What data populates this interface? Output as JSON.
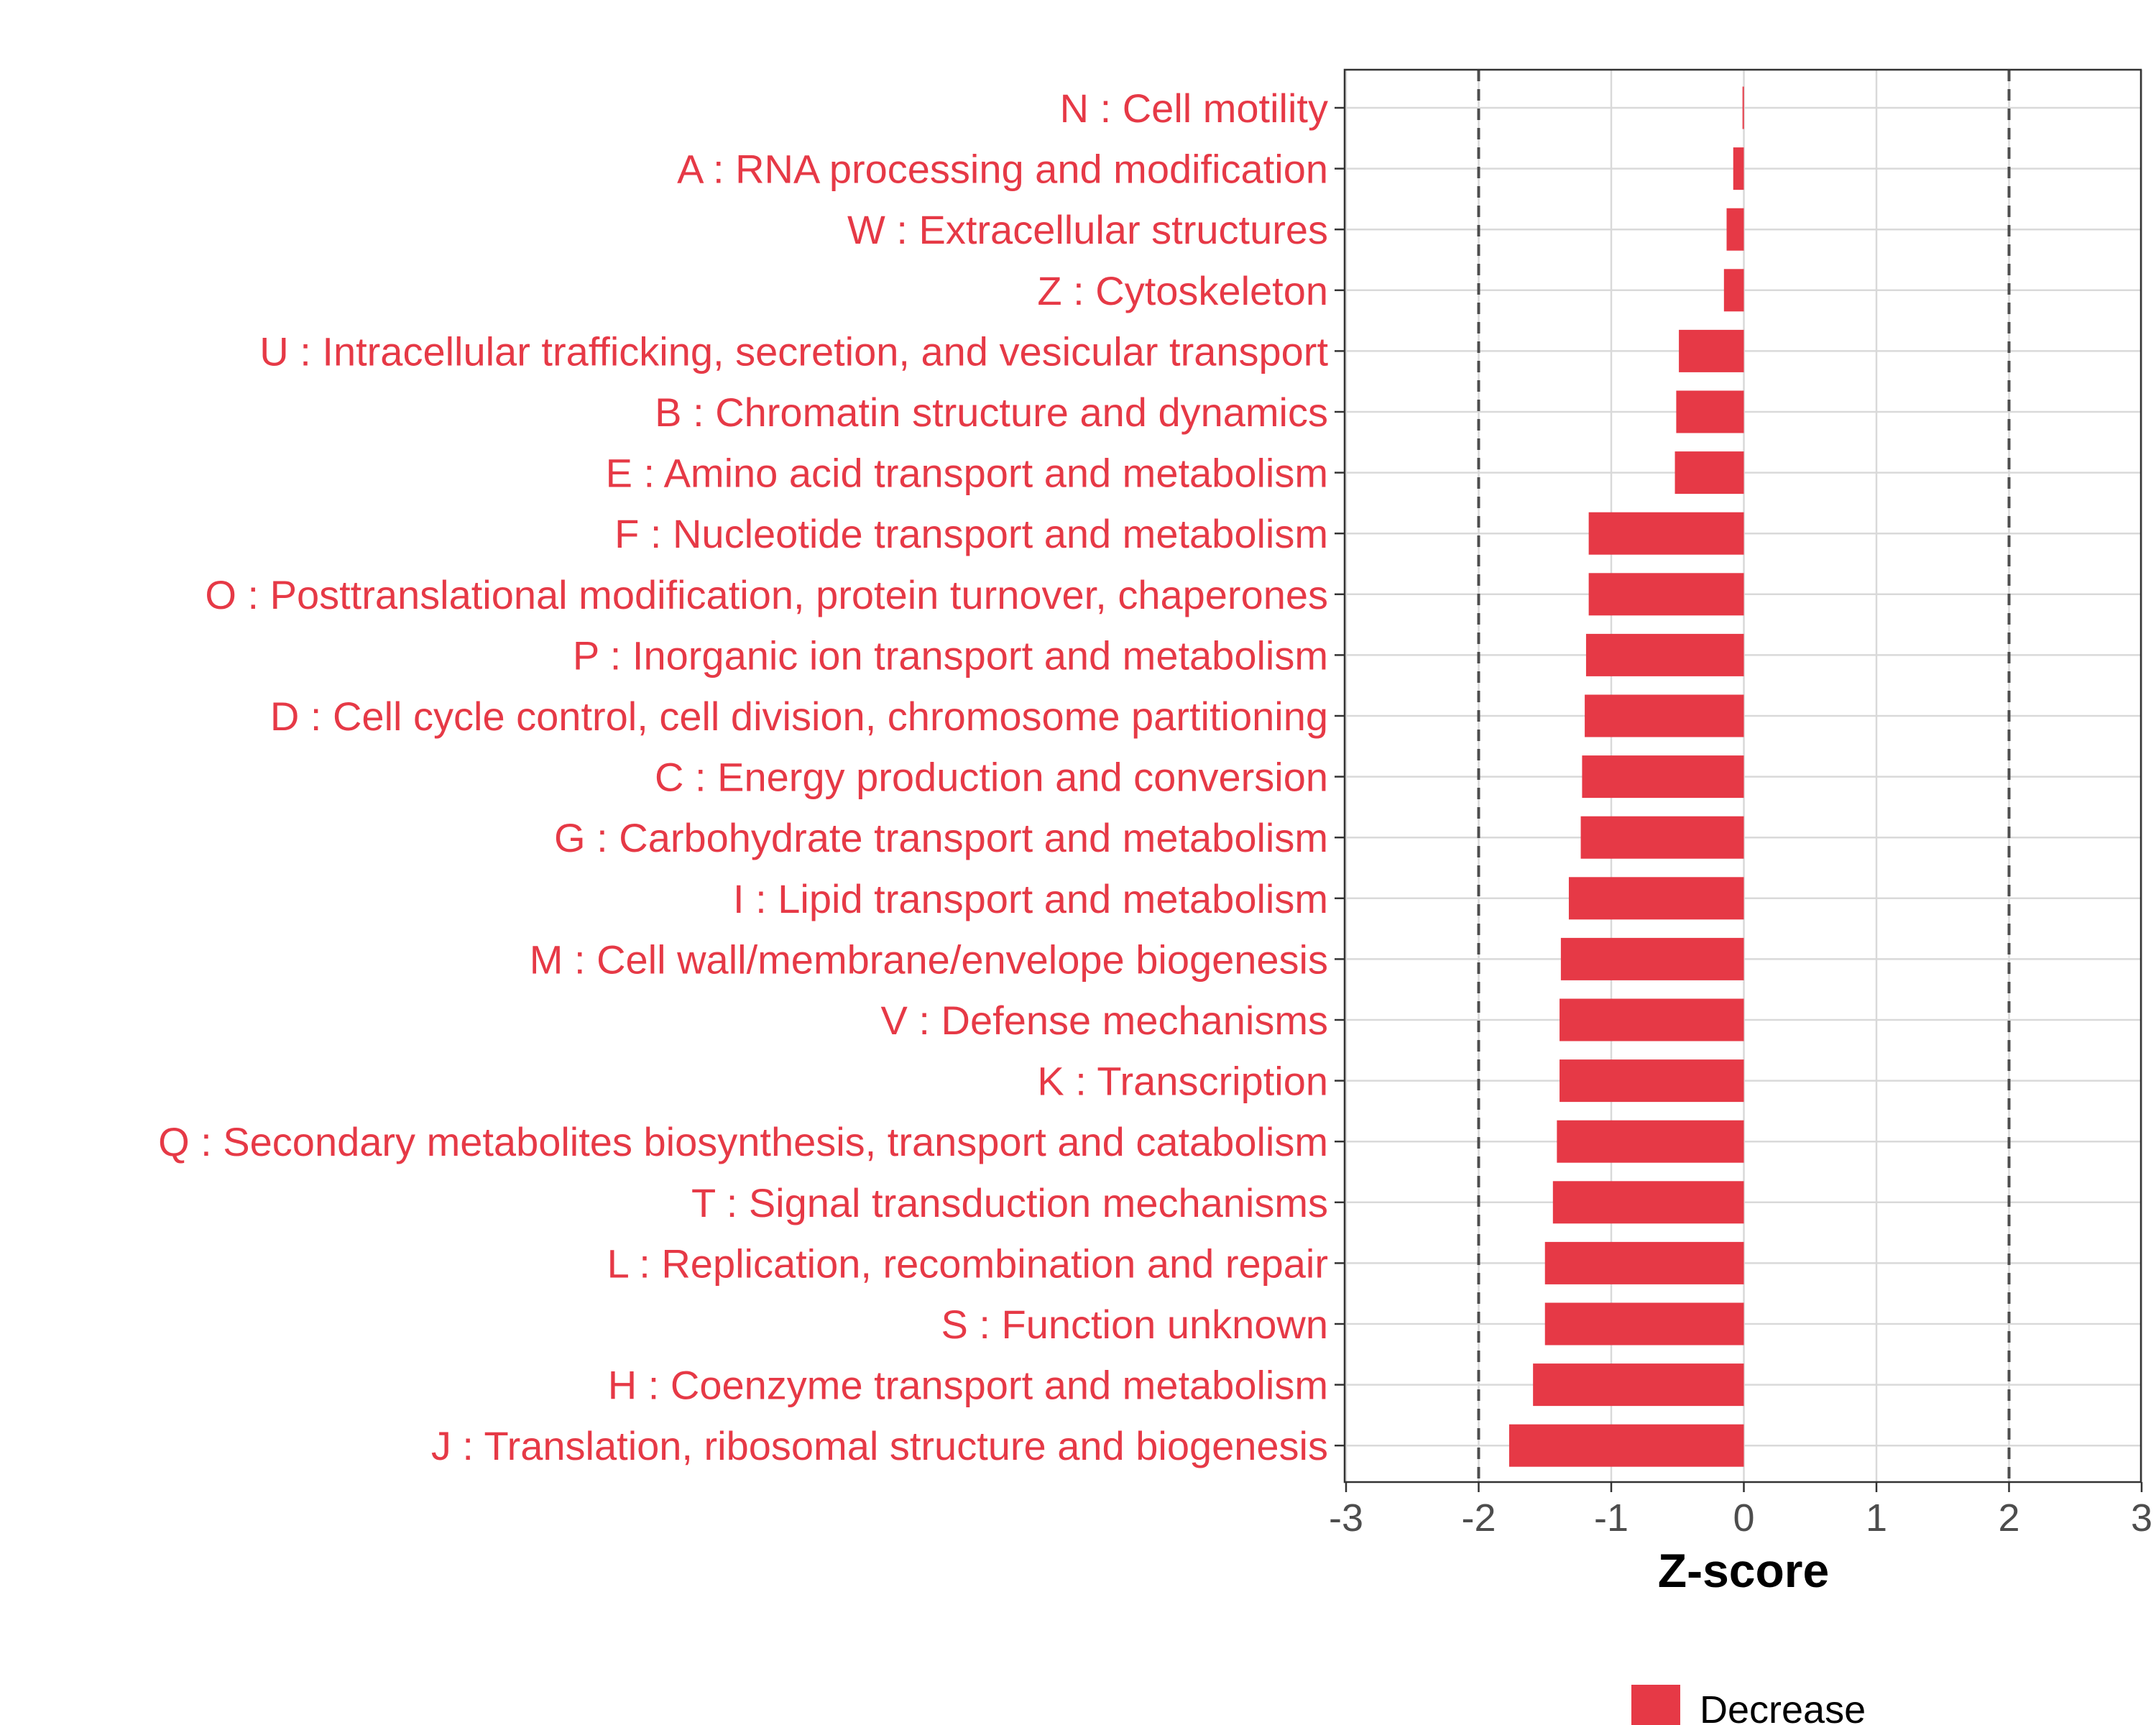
{
  "chart_data": {
    "type": "bar",
    "orientation": "horizontal",
    "categories": [
      "N : Cell motility",
      "A : RNA processing and modification",
      "W : Extracellular structures",
      "Z : Cytoskeleton",
      "U : Intracellular trafficking, secretion, and vesicular transport",
      "B : Chromatin structure and dynamics",
      "E : Amino acid transport and metabolism",
      "F : Nucleotide transport and metabolism",
      "O : Posttranslational modification, protein turnover, chaperones",
      "P : Inorganic ion transport and metabolism",
      "D : Cell cycle control, cell division, chromosome partitioning",
      "C : Energy production and conversion",
      "G : Carbohydrate transport and metabolism",
      "I : Lipid transport and metabolism",
      "M : Cell wall/membrane/envelope biogenesis",
      "V : Defense mechanisms",
      "K : Transcription",
      "Q : Secondary metabolites biosynthesis, transport and catabolism",
      "T : Signal transduction mechanisms",
      "L : Replication, recombination and repair",
      "S : Function unknown",
      "H : Coenzyme transport and metabolism",
      "J : Translation, ribosomal structure and biogenesis"
    ],
    "values": [
      -0.01,
      -0.08,
      -0.13,
      -0.15,
      -0.49,
      -0.51,
      -0.52,
      -1.17,
      -1.17,
      -1.19,
      -1.2,
      -1.22,
      -1.23,
      -1.32,
      -1.38,
      -1.39,
      -1.39,
      -1.41,
      -1.44,
      -1.5,
      -1.5,
      -1.59,
      -1.77
    ],
    "series": [
      {
        "name": "Decrease",
        "color": "#E63946"
      }
    ],
    "xlabel": "Z-score",
    "ylabel": "",
    "xlim": [
      -3,
      3
    ],
    "xticks": [
      "-3",
      "-2",
      "-1",
      "0",
      "1",
      "2",
      "3"
    ],
    "reference_lines": [
      -2,
      2
    ],
    "grid": true,
    "legend_position": "bottom",
    "bar_color": "#E63946",
    "label_color": "#E63946"
  }
}
